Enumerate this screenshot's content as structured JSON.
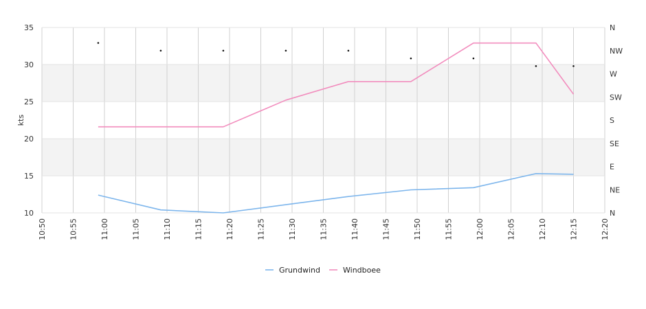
{
  "chart_data": {
    "type": "line",
    "ylabel": "kts",
    "ylim": [
      10,
      35
    ],
    "yticks": [
      "10",
      "15",
      "20",
      "25",
      "30",
      "35"
    ],
    "xlim": [
      "10:50",
      "12:20"
    ],
    "xticks": [
      "10:50",
      "10:55",
      "11:00",
      "11:05",
      "11:10",
      "11:15",
      "11:20",
      "11:25",
      "11:30",
      "11:35",
      "11:40",
      "11:45",
      "11:50",
      "11:55",
      "12:00",
      "12:05",
      "12:10",
      "12:15",
      "12:20"
    ],
    "y2ticks": [
      "N",
      "NE",
      "E",
      "SE",
      "S",
      "SW",
      "W",
      "NW",
      "N"
    ],
    "y2lim": [
      0,
      360
    ],
    "x": [
      "10:59",
      "11:09",
      "11:19",
      "11:29",
      "11:39",
      "11:49",
      "11:59",
      "12:09",
      "12:15"
    ],
    "series": [
      {
        "name": "Grundwind",
        "color": "#7cb5ec",
        "values": [
          12.4,
          10.4,
          10.0,
          11.1,
          12.2,
          13.1,
          13.4,
          15.3,
          15.2
        ]
      },
      {
        "name": "Windboee",
        "color": "#f28cbd",
        "values": [
          21.6,
          21.6,
          21.6,
          25.2,
          27.7,
          27.7,
          32.9,
          32.9,
          26.0
        ]
      }
    ],
    "direction_degrees": [
      330,
      315,
      315,
      315,
      315,
      300,
      300,
      285,
      285
    ],
    "grid": true,
    "alternating_bands": true,
    "band_color": "#f3f3f3",
    "legend_placement": "bottom-center"
  }
}
